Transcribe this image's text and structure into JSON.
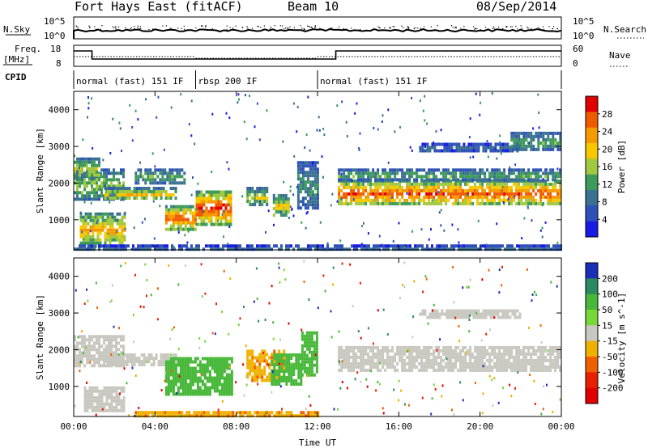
{
  "header": {
    "radar": "Fort Hays East (fitACF)",
    "beam": "Beam 10",
    "date": "08/Sep/2014"
  },
  "status_panels": {
    "nsky_label": "N.Sky",
    "nsky_ticks": [
      "10^5",
      "10^0"
    ],
    "nsearch_label": "N.Search",
    "nsearch_ticks": [
      "10^5",
      "10^0"
    ],
    "freq_label": "Freq.",
    "freq_unit": "[MHz]",
    "freq_ticks": [
      "18",
      "8"
    ],
    "nave_label": "Nave",
    "nave_ticks": [
      "60",
      "0"
    ],
    "cpid_label": "CPID",
    "cpid_segments": [
      {
        "label": "normal (fast) 151 IF",
        "start_h": 0,
        "end_h": 6
      },
      {
        "label": "rbsp 200 IF",
        "start_h": 6,
        "end_h": 12
      },
      {
        "label": "normal (fast) 151 IF",
        "start_h": 12,
        "end_h": 24
      }
    ]
  },
  "chart_data": [
    {
      "type": "heatmap",
      "panel": "power",
      "ylabel": "Slant Range [km]",
      "xlabel": "Time UT",
      "xlim_hours": [
        0,
        24
      ],
      "ylim": [
        180,
        4500
      ],
      "y_ticks": [
        "4000",
        "3000",
        "2000",
        "1000"
      ],
      "x_ticks": [
        "00:00",
        "04:00",
        "08:00",
        "12:00",
        "16:00",
        "20:00",
        "00:00"
      ],
      "colorbar": {
        "label": "Power [dB]",
        "ticks": [
          "28",
          "24",
          "20",
          "16",
          "12",
          "8",
          "4"
        ],
        "colors": [
          "#e00000",
          "#f05a00",
          "#f59a00",
          "#f5c800",
          "#a0c840",
          "#3c9a5a",
          "#3a7090",
          "#2e50b8",
          "#1a1ae6"
        ]
      },
      "bands": [
        {
          "t0": 0.0,
          "t1": 2.5,
          "r0": 1550,
          "r1": 2400,
          "db": 12
        },
        {
          "t0": 0.0,
          "t1": 1.3,
          "r0": 2100,
          "r1": 2700,
          "db": 14
        },
        {
          "t0": 0.3,
          "t1": 2.5,
          "r0": 300,
          "r1": 1200,
          "db": 18
        },
        {
          "t0": 1.5,
          "t1": 5.0,
          "r0": 1550,
          "r1": 1900,
          "db": 16
        },
        {
          "t0": 3.0,
          "t1": 5.5,
          "r0": 2000,
          "r1": 2400,
          "db": 10
        },
        {
          "t0": 4.5,
          "t1": 6.0,
          "r0": 750,
          "r1": 1400,
          "db": 22
        },
        {
          "t0": 6.0,
          "t1": 7.7,
          "r0": 900,
          "r1": 1800,
          "db": 24
        },
        {
          "t0": 8.5,
          "t1": 9.5,
          "r0": 1400,
          "r1": 1900,
          "db": 14
        },
        {
          "t0": 9.8,
          "t1": 10.6,
          "r0": 1100,
          "r1": 1700,
          "db": 16
        },
        {
          "t0": 11.0,
          "t1": 12.0,
          "r0": 1300,
          "r1": 2600,
          "db": 8
        },
        {
          "t0": 13.0,
          "t1": 24.0,
          "r0": 1400,
          "r1": 2100,
          "db": 22
        },
        {
          "t0": 13.0,
          "t1": 24.0,
          "r0": 2100,
          "r1": 2400,
          "db": 10
        },
        {
          "t0": 17.0,
          "t1": 22.0,
          "r0": 2900,
          "r1": 3100,
          "db": 6
        },
        {
          "t0": 21.5,
          "t1": 24.0,
          "r0": 2900,
          "r1": 3400,
          "db": 10
        },
        {
          "t0": 0.0,
          "t1": 24.0,
          "r0": 180,
          "r1": 330,
          "db": 6
        }
      ]
    },
    {
      "type": "heatmap",
      "panel": "velocity",
      "ylabel": "Slant Range [km]",
      "xlabel": "Time UT",
      "xlim_hours": [
        0,
        24
      ],
      "ylim": [
        180,
        4500
      ],
      "y_ticks": [
        "4000",
        "3000",
        "2000",
        "1000"
      ],
      "x_ticks": [
        "00:00",
        "04:00",
        "08:00",
        "12:00",
        "16:00",
        "20:00",
        "00:00"
      ],
      "colorbar": {
        "label": "Velocity [m s^-1]",
        "ticks": [
          "200",
          "100",
          "50",
          "15",
          "-15",
          "-50",
          "-100",
          "-200"
        ],
        "colors": [
          "#1a2eb8",
          "#2a8a60",
          "#48b83a",
          "#78d838",
          "#c8c8c0",
          "#f0b000",
          "#f06000",
          "#e82000",
          "#e00000"
        ]
      },
      "bands": [
        {
          "t0": 0.0,
          "t1": 2.5,
          "r0": 1550,
          "r1": 2400,
          "v": 0
        },
        {
          "t0": 1.5,
          "t1": 5.0,
          "r0": 1550,
          "r1": 1900,
          "v": 0
        },
        {
          "t0": 0.5,
          "t1": 2.5,
          "r0": 300,
          "r1": 1000,
          "v": 0
        },
        {
          "t0": 4.5,
          "t1": 7.8,
          "r0": 750,
          "r1": 1800,
          "v": 60
        },
        {
          "t0": 8.5,
          "t1": 10.4,
          "r0": 1200,
          "r1": 2000,
          "v": -40
        },
        {
          "t0": 9.7,
          "t1": 11.2,
          "r0": 1100,
          "r1": 1900,
          "v": 60
        },
        {
          "t0": 11.2,
          "t1": 12.0,
          "r0": 1300,
          "r1": 2500,
          "v": 50
        },
        {
          "t0": 13.0,
          "t1": 24.0,
          "r0": 1400,
          "r1": 2100,
          "v": 0
        },
        {
          "t0": 17.0,
          "t1": 22.0,
          "r0": 2900,
          "r1": 3100,
          "v": 0
        },
        {
          "t0": 3.0,
          "t1": 12.0,
          "r0": 180,
          "r1": 330,
          "v": -40
        }
      ]
    }
  ]
}
